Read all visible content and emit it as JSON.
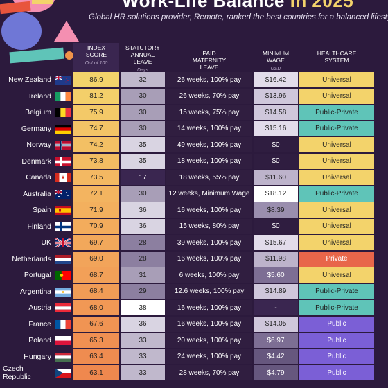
{
  "header": {
    "title_prefix": "Work-Life Balance",
    "title_year": "in 2025",
    "subtitle": "Global HR solutions provider, Remote, ranked the best countries for a balanced lifestyle"
  },
  "columns": {
    "index": "INDEX SCORE",
    "index_sub": "Out of 100",
    "leave": "STATUTORY ANNUAL LEAVE",
    "leave_sub": "Days",
    "maternity": "PAID MATERNITY LEAVE",
    "wage": "MINIMUM WAGE",
    "wage_sub": "USD",
    "health": "HEALTHCARE SYSTEM"
  },
  "colors": {
    "universal": "#f3d36b",
    "public_private": "#5fc4b8",
    "private": "#e8664a",
    "public": "#7b5fd6"
  },
  "rows": [
    {
      "country": "New Zealand",
      "flag": "nz-flag",
      "index": "86.9",
      "leave": "32",
      "maternity": "26 weeks, 100% pay",
      "wage": "$16.42",
      "health": "Universal"
    },
    {
      "country": "Ireland",
      "flag": "ie-flag",
      "index": "81.2",
      "leave": "30",
      "maternity": "26 weeks, 70% pay",
      "wage": "$13.96",
      "health": "Universal"
    },
    {
      "country": "Belgium",
      "flag": "be-flag",
      "index": "75.9",
      "leave": "30",
      "maternity": "15 weeks, 75% pay",
      "wage": "$14.58",
      "health": "Public-Private"
    },
    {
      "country": "Germany",
      "flag": "de-flag",
      "index": "74.7",
      "leave": "30",
      "maternity": "14 weeks, 100% pay",
      "wage": "$15.16",
      "health": "Public-Private"
    },
    {
      "country": "Norway",
      "flag": "no-flag",
      "index": "74.2",
      "leave": "35",
      "maternity": "49 weeks, 100% pay",
      "wage": "$0",
      "health": "Universal"
    },
    {
      "country": "Denmark",
      "flag": "dk-flag",
      "index": "73.8",
      "leave": "35",
      "maternity": "18 weeks, 100% pay",
      "wage": "$0",
      "health": "Universal"
    },
    {
      "country": "Canada",
      "flag": "ca-flag",
      "index": "73.5",
      "leave": "17",
      "maternity": "18 weeks, 55% pay",
      "wage": "$11.60",
      "health": "Universal"
    },
    {
      "country": "Australia",
      "flag": "au-flag",
      "index": "72.1",
      "leave": "30",
      "maternity": "12 weeks, Minimum Wage",
      "wage": "$18.12",
      "health": "Public-Private"
    },
    {
      "country": "Spain",
      "flag": "es-flag",
      "index": "71.9",
      "leave": "36",
      "maternity": "16 weeks, 100% pay",
      "wage": "$8.39",
      "health": "Universal"
    },
    {
      "country": "Finland",
      "flag": "fi-flag",
      "index": "70.9",
      "leave": "36",
      "maternity": "15 weeks, 80% pay",
      "wage": "$0",
      "health": "Universal"
    },
    {
      "country": "UK",
      "flag": "uk-flag",
      "index": "69.7",
      "leave": "28",
      "maternity": "39 weeks, 100% pay",
      "wage": "$15.67",
      "health": "Universal"
    },
    {
      "country": "Netherlands",
      "flag": "nl-flag",
      "index": "69.0",
      "leave": "28",
      "maternity": "16 weeks, 100% pay",
      "wage": "$11.98",
      "health": "Private"
    },
    {
      "country": "Portugal",
      "flag": "pt-flag",
      "index": "68.7",
      "leave": "31",
      "maternity": "6 weeks, 100% pay",
      "wage": "$5.60",
      "health": "Universal"
    },
    {
      "country": "Argentina",
      "flag": "ar-flag",
      "index": "68.4",
      "leave": "29",
      "maternity": "12.6 weeks, 100% pay",
      "wage": "$14.89",
      "health": "Public-Private"
    },
    {
      "country": "Austria",
      "flag": "at-flag",
      "index": "68.0",
      "leave": "38",
      "maternity": "16 weeks, 100% pay",
      "wage": "-",
      "health": "Public-Private"
    },
    {
      "country": "France",
      "flag": "fr-flag",
      "index": "67.6",
      "leave": "36",
      "maternity": "16 weeks, 100% pay",
      "wage": "$14.05",
      "health": "Public"
    },
    {
      "country": "Poland",
      "flag": "pl-flag",
      "index": "65.3",
      "leave": "33",
      "maternity": "20 weeks, 100% pay",
      "wage": "$6.97",
      "health": "Public"
    },
    {
      "country": "Hungary",
      "flag": "hu-flag",
      "index": "63.4",
      "leave": "33",
      "maternity": "24 weeks, 100% pay",
      "wage": "$4.42",
      "health": "Public"
    },
    {
      "country": "Czech Republic",
      "flag": "cz-flag",
      "index": "63.1",
      "leave": "33",
      "maternity": "28 weeks, 70% pay",
      "wage": "$4.79",
      "health": "Public"
    }
  ]
}
